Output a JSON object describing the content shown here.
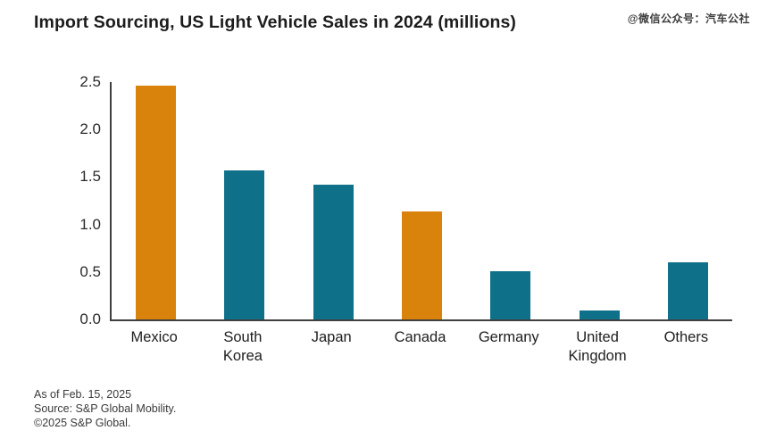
{
  "title": "Import Sourcing, US Light Vehicle Sales in 2024 (millions)",
  "watermark": "@微信公众号：汽车公社",
  "footer": {
    "line1": "As of Feb. 15, 2025",
    "line2": "Source: S&P Global Mobility.",
    "line3": "©2025 S&P Global."
  },
  "colors": {
    "orange": "#D9830D",
    "teal": "#0F7089",
    "axis": "#3f3f3f",
    "text": "#1c1c1c"
  },
  "chart_data": {
    "type": "bar",
    "title": "Import Sourcing, US Light Vehicle Sales in 2024 (millions)",
    "categories": [
      "Mexico",
      "South\nKorea",
      "Japan",
      "Canada",
      "Germany",
      "United\nKingdom",
      "Others"
    ],
    "values": [
      2.46,
      1.57,
      1.42,
      1.14,
      0.51,
      0.09,
      0.6
    ],
    "bar_colors": [
      "orange",
      "teal",
      "teal",
      "orange",
      "teal",
      "teal",
      "teal"
    ],
    "xlabel": "",
    "ylabel": "",
    "ylim": [
      0,
      2.5
    ],
    "yticks": [
      0.0,
      0.5,
      1.0,
      1.5,
      2.0,
      2.5
    ],
    "ytick_format": "one_decimal",
    "grid": false,
    "legend": false
  }
}
